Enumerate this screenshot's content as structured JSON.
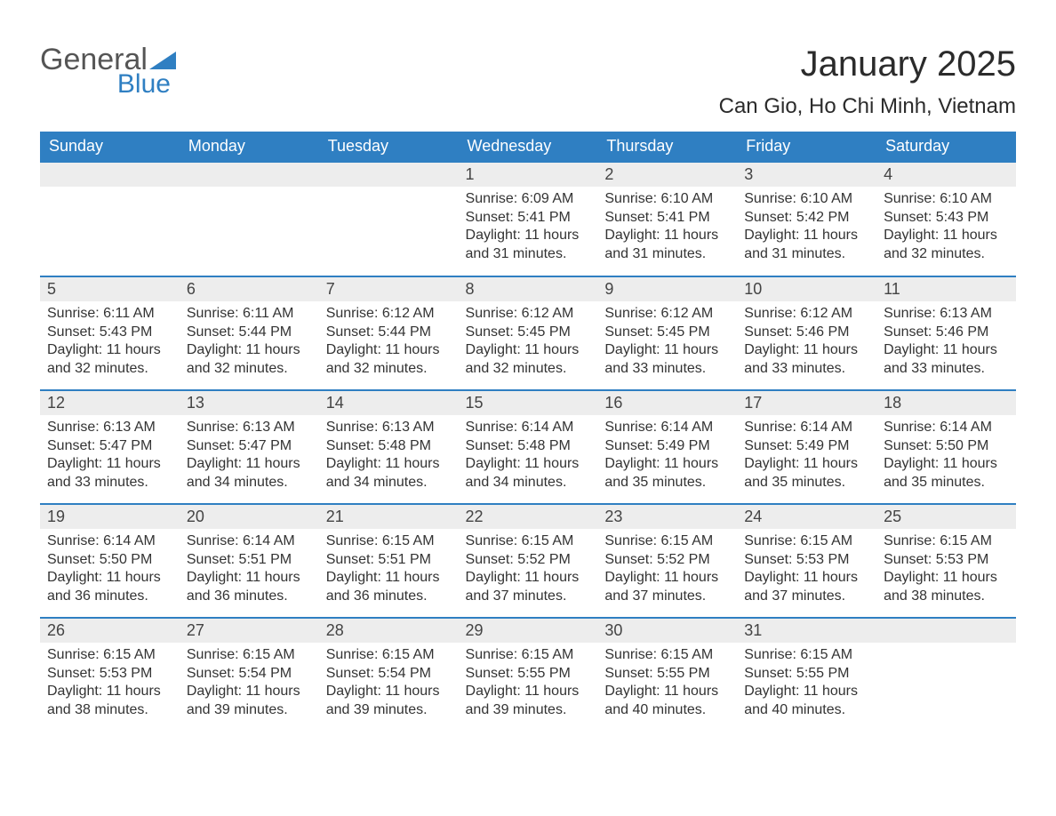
{
  "logo": {
    "text_top": "General",
    "text_bottom": "Blue",
    "accent_color": "#2f7fc2",
    "text_color": "#555555"
  },
  "title": "January 2025",
  "location": "Can Gio, Ho Chi Minh, Vietnam",
  "colors": {
    "header_bg": "#2f7fc2",
    "header_text": "#ffffff",
    "daynum_bg": "#ededed",
    "text": "#333333",
    "row_border": "#2f7fc2"
  },
  "font": {
    "family": "Arial",
    "title_size": 40,
    "location_size": 24,
    "header_size": 18,
    "daynum_size": 18,
    "body_size": 16
  },
  "day_headers": [
    "Sunday",
    "Monday",
    "Tuesday",
    "Wednesday",
    "Thursday",
    "Friday",
    "Saturday"
  ],
  "weeks": [
    [
      null,
      null,
      null,
      {
        "n": "1",
        "sunrise": "Sunrise: 6:09 AM",
        "sunset": "Sunset: 5:41 PM",
        "daylight": "Daylight: 11 hours and 31 minutes."
      },
      {
        "n": "2",
        "sunrise": "Sunrise: 6:10 AM",
        "sunset": "Sunset: 5:41 PM",
        "daylight": "Daylight: 11 hours and 31 minutes."
      },
      {
        "n": "3",
        "sunrise": "Sunrise: 6:10 AM",
        "sunset": "Sunset: 5:42 PM",
        "daylight": "Daylight: 11 hours and 31 minutes."
      },
      {
        "n": "4",
        "sunrise": "Sunrise: 6:10 AM",
        "sunset": "Sunset: 5:43 PM",
        "daylight": "Daylight: 11 hours and 32 minutes."
      }
    ],
    [
      {
        "n": "5",
        "sunrise": "Sunrise: 6:11 AM",
        "sunset": "Sunset: 5:43 PM",
        "daylight": "Daylight: 11 hours and 32 minutes."
      },
      {
        "n": "6",
        "sunrise": "Sunrise: 6:11 AM",
        "sunset": "Sunset: 5:44 PM",
        "daylight": "Daylight: 11 hours and 32 minutes."
      },
      {
        "n": "7",
        "sunrise": "Sunrise: 6:12 AM",
        "sunset": "Sunset: 5:44 PM",
        "daylight": "Daylight: 11 hours and 32 minutes."
      },
      {
        "n": "8",
        "sunrise": "Sunrise: 6:12 AM",
        "sunset": "Sunset: 5:45 PM",
        "daylight": "Daylight: 11 hours and 32 minutes."
      },
      {
        "n": "9",
        "sunrise": "Sunrise: 6:12 AM",
        "sunset": "Sunset: 5:45 PM",
        "daylight": "Daylight: 11 hours and 33 minutes."
      },
      {
        "n": "10",
        "sunrise": "Sunrise: 6:12 AM",
        "sunset": "Sunset: 5:46 PM",
        "daylight": "Daylight: 11 hours and 33 minutes."
      },
      {
        "n": "11",
        "sunrise": "Sunrise: 6:13 AM",
        "sunset": "Sunset: 5:46 PM",
        "daylight": "Daylight: 11 hours and 33 minutes."
      }
    ],
    [
      {
        "n": "12",
        "sunrise": "Sunrise: 6:13 AM",
        "sunset": "Sunset: 5:47 PM",
        "daylight": "Daylight: 11 hours and 33 minutes."
      },
      {
        "n": "13",
        "sunrise": "Sunrise: 6:13 AM",
        "sunset": "Sunset: 5:47 PM",
        "daylight": "Daylight: 11 hours and 34 minutes."
      },
      {
        "n": "14",
        "sunrise": "Sunrise: 6:13 AM",
        "sunset": "Sunset: 5:48 PM",
        "daylight": "Daylight: 11 hours and 34 minutes."
      },
      {
        "n": "15",
        "sunrise": "Sunrise: 6:14 AM",
        "sunset": "Sunset: 5:48 PM",
        "daylight": "Daylight: 11 hours and 34 minutes."
      },
      {
        "n": "16",
        "sunrise": "Sunrise: 6:14 AM",
        "sunset": "Sunset: 5:49 PM",
        "daylight": "Daylight: 11 hours and 35 minutes."
      },
      {
        "n": "17",
        "sunrise": "Sunrise: 6:14 AM",
        "sunset": "Sunset: 5:49 PM",
        "daylight": "Daylight: 11 hours and 35 minutes."
      },
      {
        "n": "18",
        "sunrise": "Sunrise: 6:14 AM",
        "sunset": "Sunset: 5:50 PM",
        "daylight": "Daylight: 11 hours and 35 minutes."
      }
    ],
    [
      {
        "n": "19",
        "sunrise": "Sunrise: 6:14 AM",
        "sunset": "Sunset: 5:50 PM",
        "daylight": "Daylight: 11 hours and 36 minutes."
      },
      {
        "n": "20",
        "sunrise": "Sunrise: 6:14 AM",
        "sunset": "Sunset: 5:51 PM",
        "daylight": "Daylight: 11 hours and 36 minutes."
      },
      {
        "n": "21",
        "sunrise": "Sunrise: 6:15 AM",
        "sunset": "Sunset: 5:51 PM",
        "daylight": "Daylight: 11 hours and 36 minutes."
      },
      {
        "n": "22",
        "sunrise": "Sunrise: 6:15 AM",
        "sunset": "Sunset: 5:52 PM",
        "daylight": "Daylight: 11 hours and 37 minutes."
      },
      {
        "n": "23",
        "sunrise": "Sunrise: 6:15 AM",
        "sunset": "Sunset: 5:52 PM",
        "daylight": "Daylight: 11 hours and 37 minutes."
      },
      {
        "n": "24",
        "sunrise": "Sunrise: 6:15 AM",
        "sunset": "Sunset: 5:53 PM",
        "daylight": "Daylight: 11 hours and 37 minutes."
      },
      {
        "n": "25",
        "sunrise": "Sunrise: 6:15 AM",
        "sunset": "Sunset: 5:53 PM",
        "daylight": "Daylight: 11 hours and 38 minutes."
      }
    ],
    [
      {
        "n": "26",
        "sunrise": "Sunrise: 6:15 AM",
        "sunset": "Sunset: 5:53 PM",
        "daylight": "Daylight: 11 hours and 38 minutes."
      },
      {
        "n": "27",
        "sunrise": "Sunrise: 6:15 AM",
        "sunset": "Sunset: 5:54 PM",
        "daylight": "Daylight: 11 hours and 39 minutes."
      },
      {
        "n": "28",
        "sunrise": "Sunrise: 6:15 AM",
        "sunset": "Sunset: 5:54 PM",
        "daylight": "Daylight: 11 hours and 39 minutes."
      },
      {
        "n": "29",
        "sunrise": "Sunrise: 6:15 AM",
        "sunset": "Sunset: 5:55 PM",
        "daylight": "Daylight: 11 hours and 39 minutes."
      },
      {
        "n": "30",
        "sunrise": "Sunrise: 6:15 AM",
        "sunset": "Sunset: 5:55 PM",
        "daylight": "Daylight: 11 hours and 40 minutes."
      },
      {
        "n": "31",
        "sunrise": "Sunrise: 6:15 AM",
        "sunset": "Sunset: 5:55 PM",
        "daylight": "Daylight: 11 hours and 40 minutes."
      },
      null
    ]
  ]
}
